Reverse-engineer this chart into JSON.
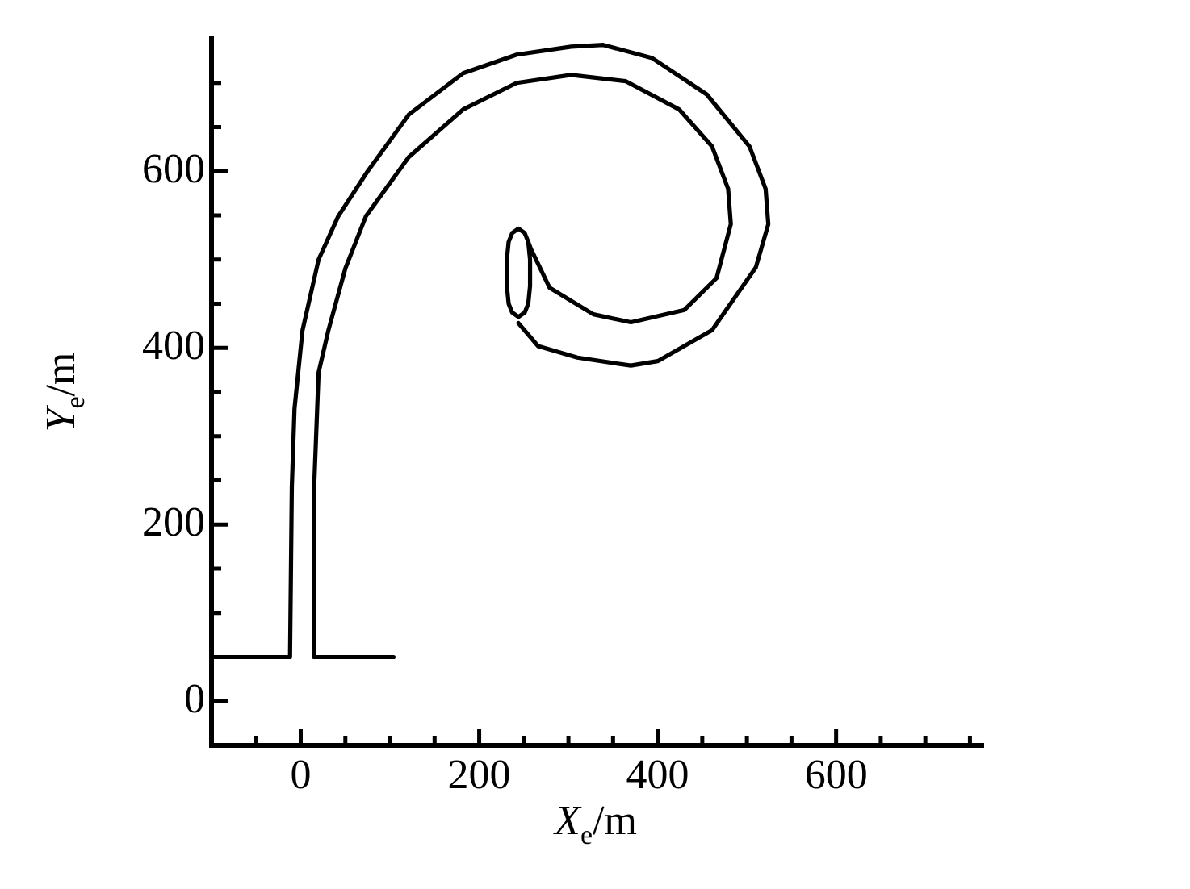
{
  "chart_data": {
    "type": "line",
    "xlabel": "X$_{e}$/m",
    "ylabel": "Y$_{e}$/m",
    "marker": "none",
    "line_style": "solid",
    "grid": false,
    "legend": false,
    "xlim": [
      -100,
      765
    ],
    "ylim": [
      -50,
      750
    ],
    "xticks": [
      {
        "value": -50,
        "label": null
      },
      0,
      {
        "value": 50,
        "label": null
      },
      {
        "value": 100,
        "label": null
      },
      {
        "value": 150,
        "label": null
      },
      200,
      {
        "value": 250,
        "label": null
      },
      {
        "value": 300,
        "label": null
      },
      {
        "value": 350,
        "label": null
      },
      400,
      {
        "value": 450,
        "label": null
      },
      {
        "value": 500,
        "label": null
      },
      {
        "value": 550,
        "label": null
      },
      600,
      {
        "value": 650,
        "label": null
      },
      {
        "value": 700,
        "label": null
      },
      {
        "value": 750,
        "label": null
      }
    ],
    "yticks": [
      0,
      {
        "value": 50,
        "label": null
      },
      {
        "value": 100,
        "label": null
      },
      {
        "value": 150,
        "label": null
      },
      200,
      {
        "value": 250,
        "label": null
      },
      {
        "value": 300,
        "label": null
      },
      {
        "value": 350,
        "label": null
      },
      400,
      {
        "value": 450,
        "label": null
      },
      {
        "value": 500,
        "label": null
      },
      {
        "value": 550,
        "label": null
      },
      600,
      {
        "value": 650,
        "label": null
      },
      {
        "value": 700,
        "label": null
      }
    ],
    "series": [
      {
        "color": "#000000",
        "x": [
          -100,
          -12,
          -10,
          -7,
          2,
          20,
          42,
          75,
          121,
          182,
          242,
          303,
          339,
          394,
          455,
          503,
          521,
          524,
          510,
          461,
          400,
          370,
          310,
          266,
          244
        ],
        "values": [
          50,
          50,
          242,
          331,
          420,
          500,
          549,
          600,
          664,
          711,
          732,
          741,
          743,
          728,
          687,
          628,
          580,
          540,
          491,
          420,
          385,
          380,
          389,
          402,
          428
        ]
      },
      {
        "color": "#000000",
        "x": [
          104,
          15,
          15,
          20,
          31,
          50,
          73,
          121,
          182,
          242,
          303,
          364,
          424,
          461,
          479,
          482,
          466,
          430,
          370,
          328,
          279,
          258,
          255,
          251,
          244,
          237,
          233,
          231,
          231,
          233,
          237,
          244,
          251,
          255,
          257,
          257,
          255
        ],
        "values": [
          50,
          50,
          242,
          372,
          420,
          490,
          549,
          616,
          670,
          700,
          709,
          702,
          670,
          628,
          580,
          540,
          479,
          443,
          429,
          438,
          468,
          512,
          520,
          530,
          535,
          530,
          520,
          500,
          470,
          450,
          440,
          435,
          440,
          450,
          470,
          500,
          520
        ]
      }
    ]
  }
}
